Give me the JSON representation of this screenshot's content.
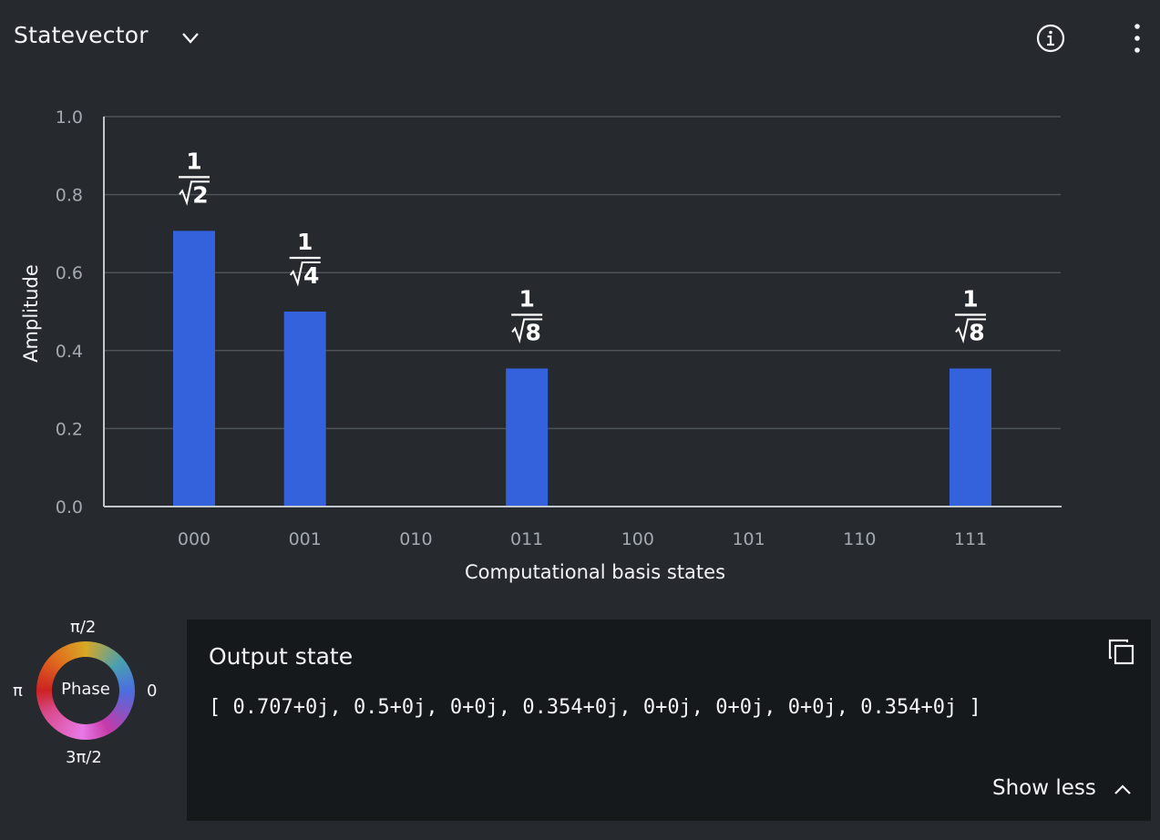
{
  "header": {
    "title": "Statevector"
  },
  "icons": {
    "dropdown": "chevron-down-icon",
    "info": "info-icon",
    "menu": "overflow-menu-vertical-icon",
    "copy": "copy-icon",
    "show_less": "chevron-up-icon"
  },
  "colors": {
    "bar": "#3461dc",
    "background": "#262a2e",
    "panel": "#16191c"
  },
  "chart_data": {
    "type": "bar",
    "categories": [
      "000",
      "001",
      "010",
      "011",
      "100",
      "101",
      "110",
      "111"
    ],
    "values": [
      0.707,
      0.5,
      0,
      0.354,
      0,
      0,
      0,
      0.354
    ],
    "bar_labels": [
      {
        "num": "1",
        "den": "2"
      },
      {
        "num": "1",
        "den": "4"
      },
      null,
      {
        "num": "1",
        "den": "8"
      },
      null,
      null,
      null,
      {
        "num": "1",
        "den": "8"
      }
    ],
    "xlabel": "Computational basis states",
    "ylabel": "Amplitude",
    "ylim": [
      0,
      1.0
    ],
    "yticks": [
      "0.0",
      "0.2",
      "0.4",
      "0.6",
      "0.8",
      "1.0"
    ],
    "grid": true
  },
  "phase_wheel": {
    "center_label": "Phase",
    "top": "π/2",
    "right": "0",
    "bottom": "3π/2",
    "left": "π"
  },
  "output": {
    "title": "Output state",
    "value": "[ 0.707+0j, 0.5+0j, 0+0j, 0.354+0j, 0+0j, 0+0j, 0+0j, 0.354+0j ]",
    "show_less_label": "Show less"
  }
}
